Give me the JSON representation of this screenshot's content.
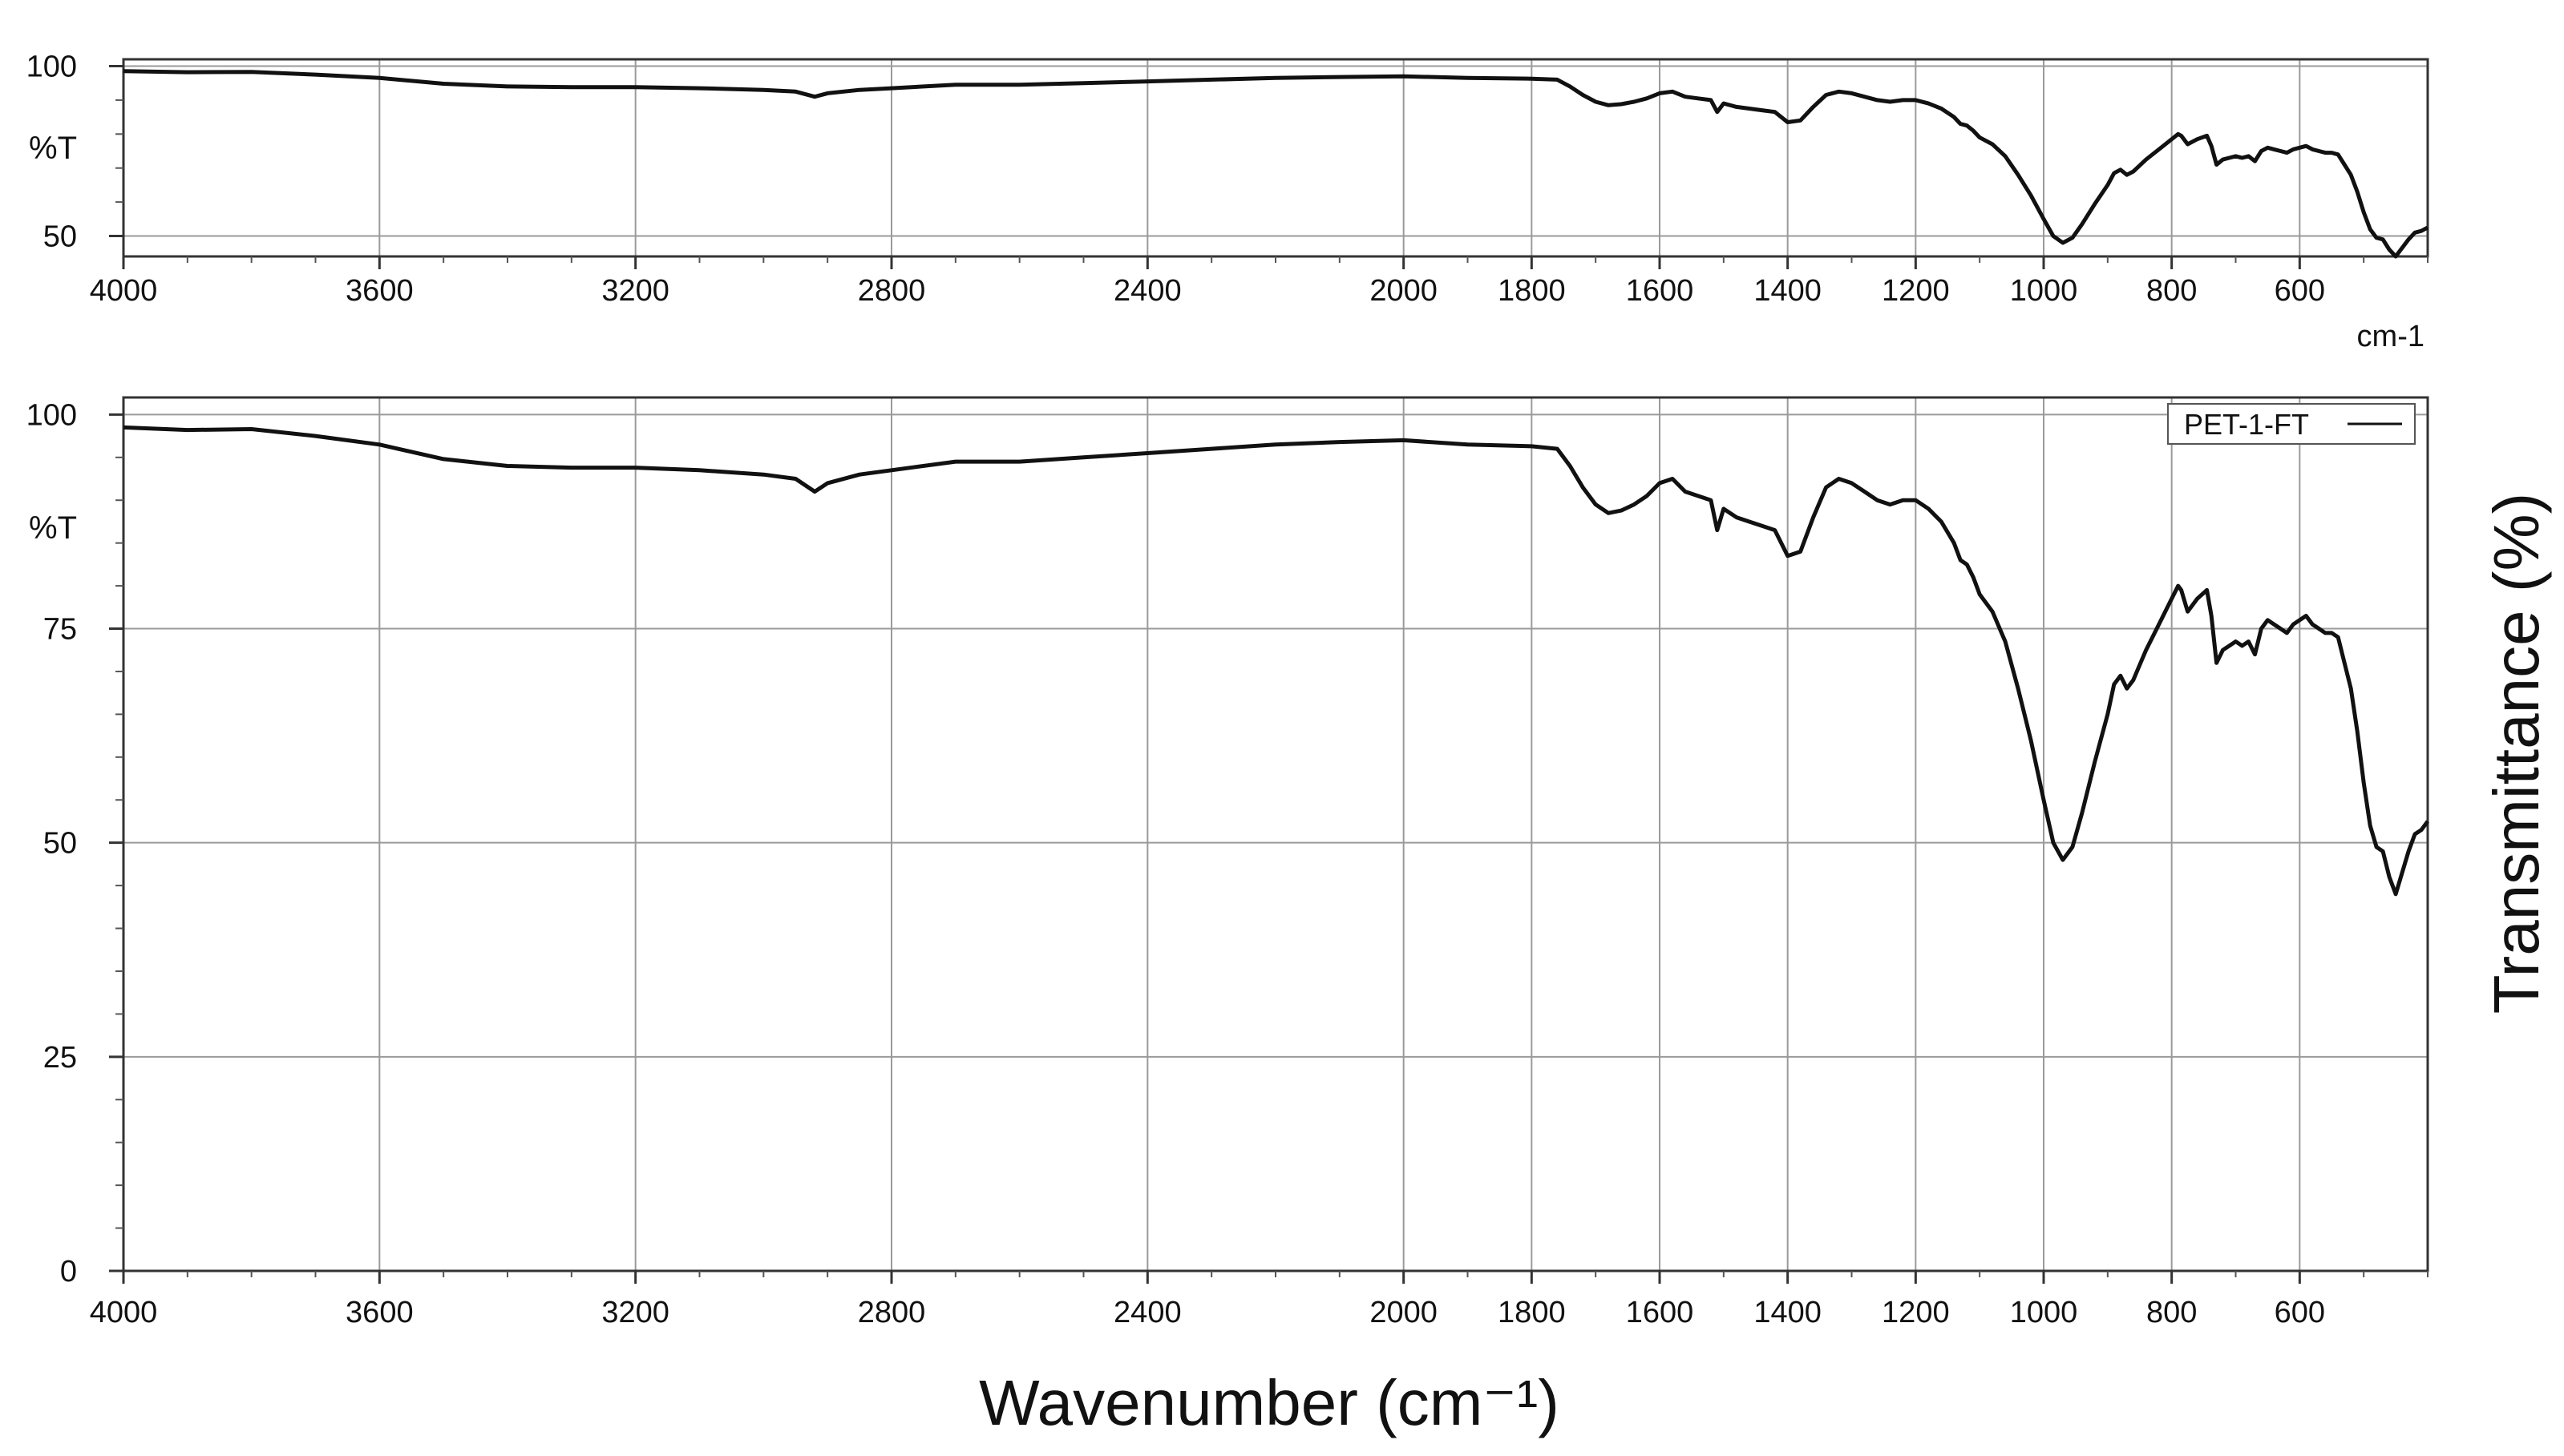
{
  "figure": {
    "x_axis_title": "Wavenumber (cm⁻¹)",
    "y_axis_title": "Transmittance (%)",
    "line_color": "#111111",
    "grid_color": "#9a9a9a"
  },
  "chart_data": [
    {
      "type": "line",
      "ylabel": "%T",
      "xlabel": "cm-1",
      "xlim": [
        4000,
        400
      ],
      "x_reversed": true,
      "ylim": [
        44,
        102
      ],
      "yticks": [
        100,
        50
      ],
      "ytick_labels": [
        "100",
        "50"
      ],
      "xticks": [
        4000,
        3600,
        3200,
        2800,
        2400,
        2000,
        1800,
        1600,
        1400,
        1200,
        1000,
        800,
        600
      ],
      "xtick_labels": [
        "4000",
        "3600",
        "3200",
        "2800",
        "2400",
        "2000",
        "1800",
        "1600",
        "1400",
        "1200",
        "1000",
        "800",
        "600"
      ],
      "grid": true,
      "series": [
        {
          "x": [
            4000,
            3900,
            3800,
            3700,
            3600,
            3500,
            3400,
            3300,
            3200,
            3100,
            3000,
            2950,
            2920,
            2900,
            2850,
            2800,
            2700,
            2600,
            2500,
            2400,
            2300,
            2200,
            2100,
            2000,
            1900,
            1800,
            1760,
            1740,
            1720,
            1700,
            1680,
            1660,
            1640,
            1620,
            1600,
            1580,
            1560,
            1540,
            1520,
            1510,
            1500,
            1480,
            1460,
            1440,
            1420,
            1400,
            1380,
            1360,
            1340,
            1320,
            1300,
            1280,
            1260,
            1240,
            1220,
            1200,
            1180,
            1160,
            1140,
            1130,
            1120,
            1110,
            1100,
            1080,
            1060,
            1040,
            1020,
            1000,
            985,
            970,
            955,
            940,
            920,
            900,
            890,
            880,
            870,
            860,
            840,
            820,
            800,
            790,
            785,
            775,
            760,
            745,
            738,
            730,
            720,
            710,
            700,
            690,
            680,
            670,
            660,
            650,
            640,
            630,
            620,
            610,
            600,
            590,
            580,
            570,
            560,
            550,
            540,
            530,
            520,
            510,
            500,
            490,
            480,
            470,
            460,
            450,
            440,
            430,
            420,
            410,
            400
          ],
          "y": [
            98.5,
            98.2,
            98.3,
            97.5,
            96.5,
            94.8,
            94.0,
            93.8,
            93.8,
            93.5,
            93.0,
            92.5,
            91.0,
            92.0,
            93.0,
            93.5,
            94.5,
            94.5,
            95.0,
            95.5,
            96.0,
            96.5,
            96.8,
            97.0,
            96.5,
            96.3,
            96.0,
            94.0,
            91.5,
            89.5,
            88.5,
            88.8,
            89.5,
            90.5,
            92.0,
            92.5,
            91.0,
            90.5,
            90.0,
            86.5,
            89.0,
            88.0,
            87.5,
            87.0,
            86.5,
            83.5,
            84.0,
            88.0,
            91.5,
            92.5,
            92.0,
            91.0,
            90.0,
            89.5,
            90.0,
            90.0,
            89.0,
            87.5,
            85.0,
            83.0,
            82.5,
            81.0,
            79.0,
            77.0,
            73.5,
            68.0,
            62.0,
            55.0,
            50.0,
            48.0,
            49.5,
            53.5,
            59.5,
            65.0,
            68.5,
            69.5,
            68.0,
            69.0,
            72.5,
            75.5,
            78.5,
            80.0,
            79.5,
            77.0,
            78.5,
            79.5,
            76.5,
            71.0,
            72.5,
            73.0,
            73.5,
            73.0,
            73.5,
            72.0,
            75.0,
            76.0,
            75.5,
            75.0,
            74.5,
            75.5,
            76.0,
            76.5,
            75.5,
            75.0,
            74.5,
            74.5,
            74.0,
            71.0,
            68.0,
            63.0,
            57.0,
            52.0,
            49.5,
            49.0,
            46.0,
            44.0,
            46.5,
            49.0,
            51.0,
            51.5,
            52.5
          ]
        }
      ]
    },
    {
      "type": "line",
      "ylabel": "%T",
      "xlabel": "",
      "xlim": [
        4000,
        400
      ],
      "x_reversed": true,
      "ylim": [
        0,
        102
      ],
      "yticks": [
        100,
        75,
        50,
        25,
        0
      ],
      "ytick_labels": [
        "100",
        "75",
        "50",
        "25",
        "0"
      ],
      "xticks": [
        4000,
        3600,
        3200,
        2800,
        2400,
        2000,
        1800,
        1600,
        1400,
        1200,
        1000,
        800,
        600
      ],
      "xtick_labels": [
        "4000",
        "3600",
        "3200",
        "2800",
        "2400",
        "2000",
        "1800",
        "1600",
        "1400",
        "1200",
        "1000",
        "800",
        "600"
      ],
      "grid": true,
      "legend": {
        "placement": "top-right",
        "entries": [
          "PET-1-FT"
        ]
      },
      "series": [
        {
          "name": "PET-1-FT",
          "x": [
            4000,
            3900,
            3800,
            3700,
            3600,
            3500,
            3400,
            3300,
            3200,
            3100,
            3000,
            2950,
            2920,
            2900,
            2850,
            2800,
            2700,
            2600,
            2500,
            2400,
            2300,
            2200,
            2100,
            2000,
            1900,
            1800,
            1760,
            1740,
            1720,
            1700,
            1680,
            1660,
            1640,
            1620,
            1600,
            1580,
            1560,
            1540,
            1520,
            1510,
            1500,
            1480,
            1460,
            1440,
            1420,
            1400,
            1380,
            1360,
            1340,
            1320,
            1300,
            1280,
            1260,
            1240,
            1220,
            1200,
            1180,
            1160,
            1140,
            1130,
            1120,
            1110,
            1100,
            1080,
            1060,
            1040,
            1020,
            1000,
            985,
            970,
            955,
            940,
            920,
            900,
            890,
            880,
            870,
            860,
            840,
            820,
            800,
            790,
            785,
            775,
            760,
            745,
            738,
            730,
            720,
            710,
            700,
            690,
            680,
            670,
            660,
            650,
            640,
            630,
            620,
            610,
            600,
            590,
            580,
            570,
            560,
            550,
            540,
            530,
            520,
            510,
            500,
            490,
            480,
            470,
            460,
            450,
            440,
            430,
            420,
            410,
            400
          ],
          "y": [
            98.5,
            98.2,
            98.3,
            97.5,
            96.5,
            94.8,
            94.0,
            93.8,
            93.8,
            93.5,
            93.0,
            92.5,
            91.0,
            92.0,
            93.0,
            93.5,
            94.5,
            94.5,
            95.0,
            95.5,
            96.0,
            96.5,
            96.8,
            97.0,
            96.5,
            96.3,
            96.0,
            94.0,
            91.5,
            89.5,
            88.5,
            88.8,
            89.5,
            90.5,
            92.0,
            92.5,
            91.0,
            90.5,
            90.0,
            86.5,
            89.0,
            88.0,
            87.5,
            87.0,
            86.5,
            83.5,
            84.0,
            88.0,
            91.5,
            92.5,
            92.0,
            91.0,
            90.0,
            89.5,
            90.0,
            90.0,
            89.0,
            87.5,
            85.0,
            83.0,
            82.5,
            81.0,
            79.0,
            77.0,
            73.5,
            68.0,
            62.0,
            55.0,
            50.0,
            48.0,
            49.5,
            53.5,
            59.5,
            65.0,
            68.5,
            69.5,
            68.0,
            69.0,
            72.5,
            75.5,
            78.5,
            80.0,
            79.5,
            77.0,
            78.5,
            79.5,
            76.5,
            71.0,
            72.5,
            73.0,
            73.5,
            73.0,
            73.5,
            72.0,
            75.0,
            76.0,
            75.5,
            75.0,
            74.5,
            75.5,
            76.0,
            76.5,
            75.5,
            75.0,
            74.5,
            74.5,
            74.0,
            71.0,
            68.0,
            63.0,
            57.0,
            52.0,
            49.5,
            49.0,
            46.0,
            44.0,
            46.5,
            49.0,
            51.0,
            51.5,
            52.5
          ]
        }
      ]
    }
  ]
}
